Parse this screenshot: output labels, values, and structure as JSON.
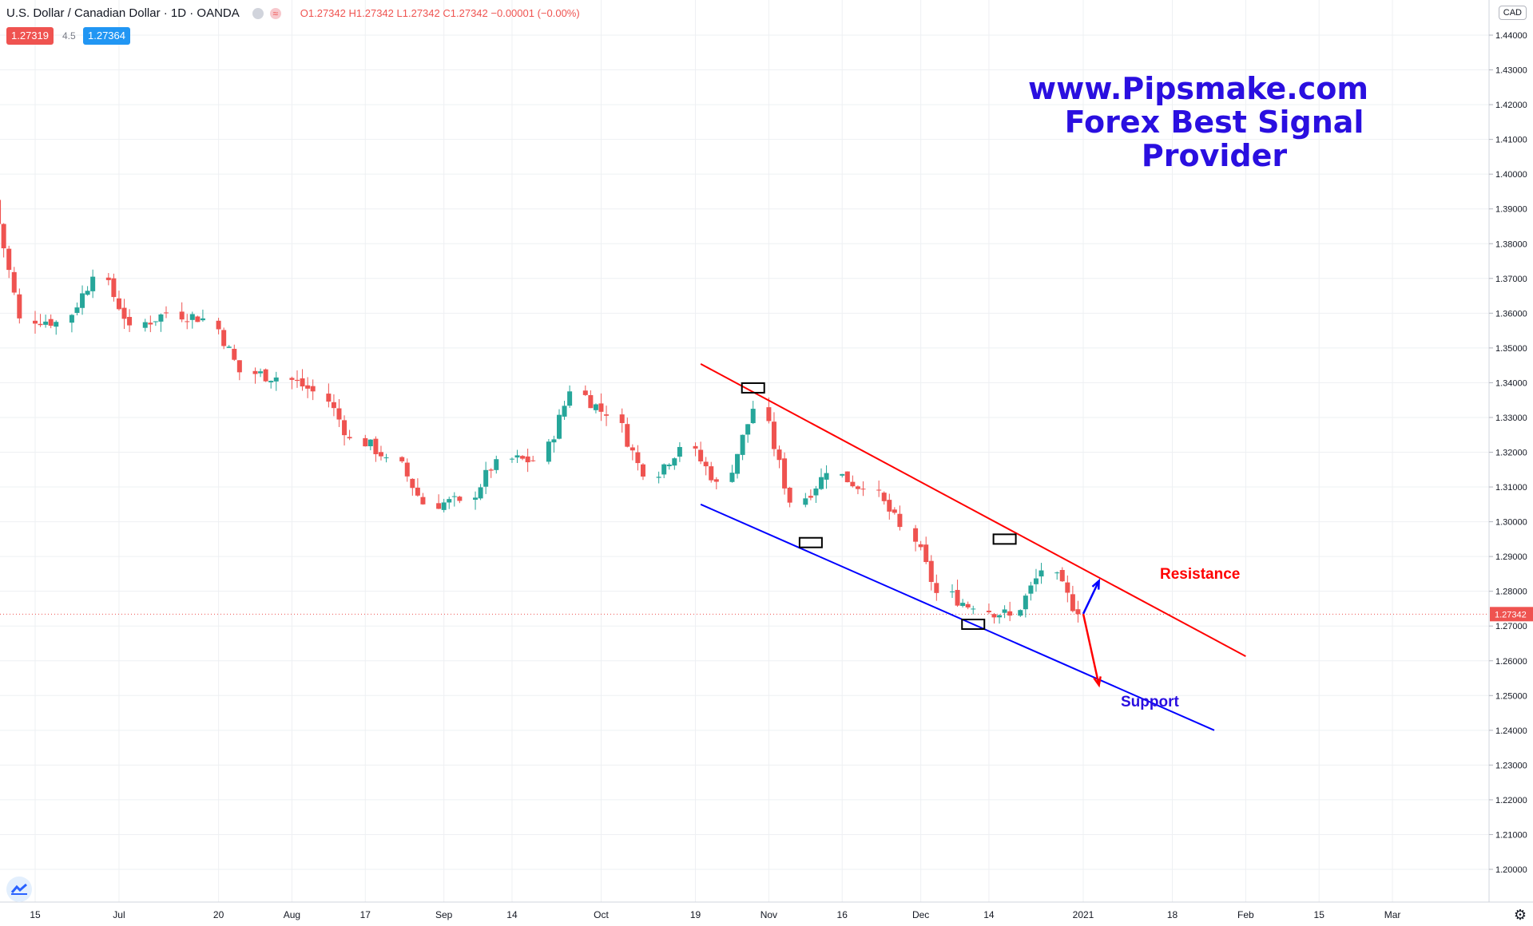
{
  "header": {
    "symbol": "U.S. Dollar / Canadian Dollar · 1D · OANDA",
    "open": "O1.27342",
    "high": "H1.27342",
    "low": "L1.27342",
    "close": "C1.27342",
    "change": "−0.00001 (−0.00%)",
    "sell_price": "1.27319",
    "spread": "4.5",
    "buy_price": "1.27364",
    "currency": "CAD"
  },
  "watermark": {
    "line1": "www.Pipsmake.com",
    "line2": "Forex Best Signal Provider"
  },
  "colors": {
    "up": "#26a69a",
    "down": "#ef5350",
    "resistance": "#ff0000",
    "support": "#0000ff",
    "watermark": "#2a0fe0",
    "grid": "#eef0f3",
    "price_tag": "#ef5350",
    "buy_tag": "#2196f3"
  },
  "icons": [
    "tradingview-logo-icon",
    "settings-gear-icon"
  ],
  "chart_data": {
    "type": "candlestick",
    "title": "U.S. Dollar / Canadian Dollar · 1D · OANDA",
    "ylim": [
      1.195,
      1.445
    ],
    "y_ticks": [
      "1.44000",
      "1.43000",
      "1.42000",
      "1.41000",
      "1.40000",
      "1.39000",
      "1.38000",
      "1.37000",
      "1.36000",
      "1.35000",
      "1.34000",
      "1.33000",
      "1.32000",
      "1.31000",
      "1.30000",
      "1.29000",
      "1.28000",
      "1.27000",
      "1.26000",
      "1.25000",
      "1.24000",
      "1.23000",
      "1.22000",
      "1.21000",
      "1.20000"
    ],
    "x_ticks": [
      {
        "label": "15",
        "date": "2020-06-15"
      },
      {
        "label": "Jul",
        "date": "2020-07-01"
      },
      {
        "label": "20",
        "date": "2020-07-20"
      },
      {
        "label": "Aug",
        "date": "2020-08-03"
      },
      {
        "label": "17",
        "date": "2020-08-17"
      },
      {
        "label": "Sep",
        "date": "2020-09-01"
      },
      {
        "label": "14",
        "date": "2020-09-14"
      },
      {
        "label": "Oct",
        "date": "2020-10-01"
      },
      {
        "label": "19",
        "date": "2020-10-19"
      },
      {
        "label": "Nov",
        "date": "2020-11-02"
      },
      {
        "label": "16",
        "date": "2020-11-16"
      },
      {
        "label": "Dec",
        "date": "2020-12-01"
      },
      {
        "label": "14",
        "date": "2020-12-14"
      },
      {
        "label": "2021",
        "date": "2021-01-01"
      },
      {
        "label": "18",
        "date": "2021-01-18"
      },
      {
        "label": "Feb",
        "date": "2021-02-01"
      },
      {
        "label": "15",
        "date": "2021-02-15"
      },
      {
        "label": "Mar",
        "date": "2021-03-01"
      }
    ],
    "last_price": "1.27342",
    "close_series": [
      {
        "date": "2020-06-12",
        "close": 1.3585
      },
      {
        "date": "2020-06-19",
        "close": 1.3575
      },
      {
        "date": "2020-06-26",
        "close": 1.3705
      },
      {
        "date": "2020-07-03",
        "close": 1.3565
      },
      {
        "date": "2020-07-10",
        "close": 1.36
      },
      {
        "date": "2020-07-17",
        "close": 1.3585
      },
      {
        "date": "2020-07-24",
        "close": 1.343
      },
      {
        "date": "2020-07-31",
        "close": 1.3415
      },
      {
        "date": "2020-08-07",
        "close": 1.3375
      },
      {
        "date": "2020-08-14",
        "close": 1.324
      },
      {
        "date": "2020-08-21",
        "close": 1.3185
      },
      {
        "date": "2020-08-28",
        "close": 1.305
      },
      {
        "date": "2020-09-04",
        "close": 1.306
      },
      {
        "date": "2020-09-11",
        "close": 1.318
      },
      {
        "date": "2020-09-18",
        "close": 1.3175
      },
      {
        "date": "2020-09-25",
        "close": 1.3375
      },
      {
        "date": "2020-10-02",
        "close": 1.3305
      },
      {
        "date": "2020-10-09",
        "close": 1.313
      },
      {
        "date": "2020-10-16",
        "close": 1.3215
      },
      {
        "date": "2020-10-23",
        "close": 1.3115
      },
      {
        "date": "2020-10-30",
        "close": 1.3325
      },
      {
        "date": "2020-11-06",
        "close": 1.3055
      },
      {
        "date": "2020-11-13",
        "close": 1.314
      },
      {
        "date": "2020-11-20",
        "close": 1.3095
      },
      {
        "date": "2020-11-27",
        "close": 1.2985
      },
      {
        "date": "2020-12-04",
        "close": 1.2795
      },
      {
        "date": "2020-12-11",
        "close": 1.275
      },
      {
        "date": "2020-12-18",
        "close": 1.273
      },
      {
        "date": "2020-12-24",
        "close": 1.286
      },
      {
        "date": "2020-12-31",
        "close": 1.2734
      }
    ],
    "annotations": [
      {
        "label": "Resistance",
        "type": "trendline",
        "from": {
          "date": "2020-10-20",
          "price": 1.3454
        },
        "to": {
          "date": "2021-02-01",
          "price": 1.2613
        }
      },
      {
        "label": "Support",
        "type": "trendline",
        "from": {
          "date": "2020-10-20",
          "price": 1.305
        },
        "to": {
          "date": "2021-01-26",
          "price": 1.24
        }
      },
      {
        "type": "touch_box",
        "date": "2020-10-30",
        "price": 1.3385
      },
      {
        "type": "touch_box",
        "date": "2020-11-10",
        "price": 1.294
      },
      {
        "type": "touch_box",
        "date": "2020-12-11",
        "price": 1.2705
      },
      {
        "type": "touch_box",
        "date": "2020-12-17",
        "price": 1.295
      },
      {
        "type": "arrow",
        "direction": "up",
        "from": {
          "date": "2021-01-01",
          "price": 1.2735
        },
        "to": {
          "date": "2021-01-04",
          "price": 1.283
        }
      },
      {
        "type": "arrow",
        "direction": "down",
        "from": {
          "date": "2021-01-01",
          "price": 1.2735
        },
        "to": {
          "date": "2021-01-04",
          "price": 1.253
        }
      }
    ]
  }
}
